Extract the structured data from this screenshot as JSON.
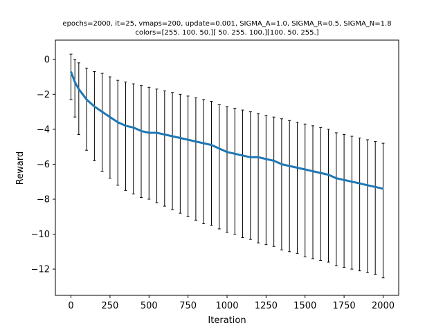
{
  "figure": {
    "title_line1": "epochs=2000, it=25, vmaps=200, update=0.001, SIGMA_A=1.0, SIGMA_R=0.5, SIGMA_N=1.8",
    "title_line2": "colors=[255. 100.  50.][ 50. 255. 100.][100.  50. 255.]"
  },
  "chart_data": {
    "type": "line",
    "title": "epochs=2000, it=25, vmaps=200, update=0.001, SIGMA_A=1.0, SIGMA_R=0.5, SIGMA_N=1.8 / colors=[255. 100.  50.][ 50. 255. 100.][100.  50. 255.]",
    "xlabel": "Iteration",
    "ylabel": "Reward",
    "xlim": [
      -100,
      2100
    ],
    "ylim": [
      -13.5,
      1.1
    ],
    "xticks": [
      0,
      250,
      500,
      750,
      1000,
      1250,
      1500,
      1750,
      2000
    ],
    "xtick_labels": [
      "0",
      "250",
      "500",
      "750",
      "1000",
      "1250",
      "1500",
      "1750",
      "2000"
    ],
    "yticks": [
      0,
      -2,
      -4,
      -6,
      -8,
      -10,
      -12
    ],
    "ytick_labels": [
      "0",
      "−2",
      "−4",
      "−6",
      "−8",
      "−10",
      "−12"
    ],
    "grid": false,
    "legend": "none",
    "series": [
      {
        "kind": "mean-with-errorbars",
        "x": [
          0,
          25,
          50,
          100,
          150,
          200,
          250,
          300,
          350,
          400,
          450,
          500,
          550,
          600,
          650,
          700,
          750,
          800,
          850,
          900,
          950,
          1000,
          1050,
          1100,
          1150,
          1200,
          1250,
          1300,
          1350,
          1400,
          1450,
          1500,
          1550,
          1600,
          1650,
          1700,
          1750,
          1800,
          1850,
          1900,
          1950,
          2000
        ],
        "mean": [
          -0.7,
          -1.3,
          -1.7,
          -2.3,
          -2.7,
          -3.0,
          -3.3,
          -3.6,
          -3.8,
          -3.9,
          -4.1,
          -4.2,
          -4.2,
          -4.3,
          -4.4,
          -4.5,
          -4.6,
          -4.7,
          -4.8,
          -4.9,
          -5.1,
          -5.3,
          -5.4,
          -5.5,
          -5.6,
          -5.6,
          -5.7,
          -5.8,
          -6.0,
          -6.1,
          -6.2,
          -6.3,
          -6.4,
          -6.5,
          -6.6,
          -6.8,
          -6.9,
          -7.0,
          -7.1,
          -7.2,
          -7.3,
          -7.4
        ],
        "upper": [
          0.3,
          0.0,
          -0.2,
          -0.5,
          -0.7,
          -0.8,
          -1.0,
          -1.2,
          -1.3,
          -1.4,
          -1.5,
          -1.6,
          -1.7,
          -1.8,
          -1.9,
          -2.0,
          -2.1,
          -2.2,
          -2.3,
          -2.4,
          -2.6,
          -2.7,
          -2.8,
          -2.9,
          -3.0,
          -3.1,
          -3.2,
          -3.3,
          -3.4,
          -3.5,
          -3.6,
          -3.7,
          -3.8,
          -3.9,
          -4.0,
          -4.2,
          -4.3,
          -4.4,
          -4.5,
          -4.6,
          -4.7,
          -4.8
        ],
        "lower": [
          -2.3,
          -3.3,
          -4.3,
          -5.2,
          -5.8,
          -6.4,
          -6.8,
          -7.2,
          -7.5,
          -7.7,
          -7.9,
          -8.0,
          -8.2,
          -8.4,
          -8.6,
          -8.8,
          -9.0,
          -9.2,
          -9.4,
          -9.5,
          -9.7,
          -9.9,
          -10.0,
          -10.2,
          -10.3,
          -10.5,
          -10.6,
          -10.7,
          -10.9,
          -11.0,
          -11.1,
          -11.3,
          -11.4,
          -11.5,
          -11.6,
          -11.8,
          -11.9,
          -12.0,
          -12.1,
          -12.2,
          -12.3,
          -12.5
        ],
        "line_color": "#1f77b4",
        "errorbar_color": "#000000"
      }
    ]
  }
}
